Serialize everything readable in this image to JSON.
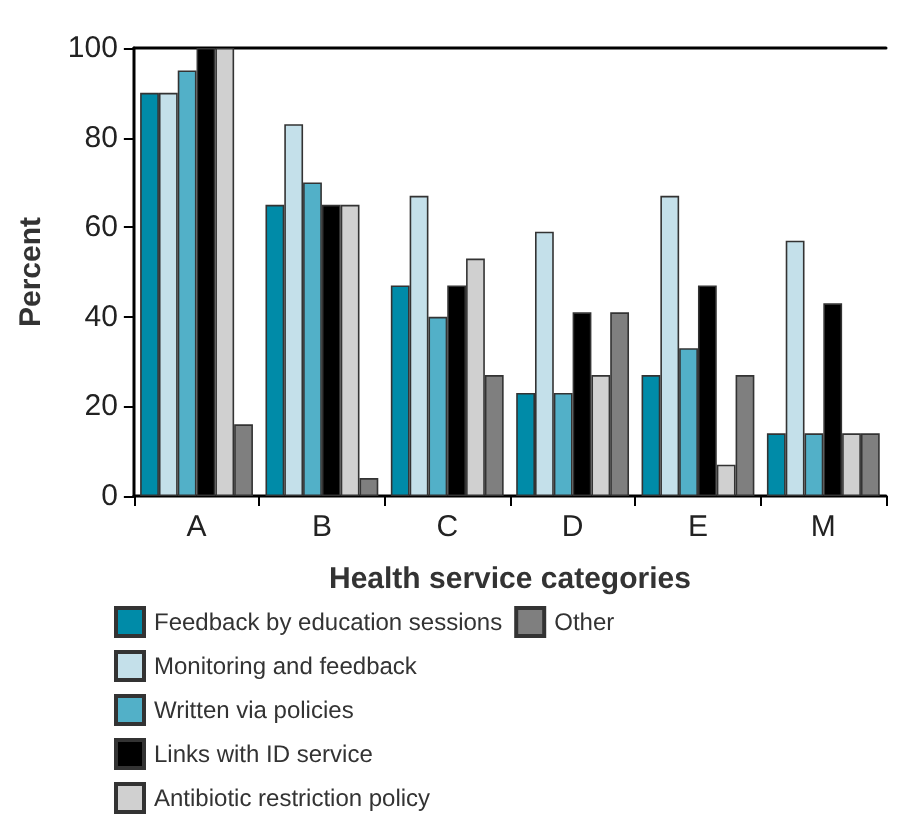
{
  "chart_data": {
    "type": "bar",
    "xlabel": "Health service categories",
    "ylabel": "Percent",
    "categories": [
      "A",
      "B",
      "C",
      "D",
      "E",
      "M"
    ],
    "series": [
      {
        "name": "Feedback by education sessions",
        "color": "#008ba8",
        "values": [
          90,
          65,
          47,
          23,
          27,
          14
        ]
      },
      {
        "name": "Monitoring and feedback",
        "color": "#c4e0ea",
        "values": [
          90,
          83,
          67,
          59,
          67,
          57
        ]
      },
      {
        "name": "Written via policies",
        "color": "#52b0c8",
        "values": [
          95,
          70,
          40,
          23,
          33,
          14
        ]
      },
      {
        "name": "Links with ID service",
        "color": "#000000",
        "values": [
          100,
          65,
          47,
          41,
          47,
          43
        ]
      },
      {
        "name": "Antibiotic restriction policy",
        "color": "#d0d0d0",
        "values": [
          100,
          65,
          53,
          27,
          7,
          14
        ]
      },
      {
        "name": "Other",
        "color": "#7f7f7f",
        "values": [
          16,
          4,
          27,
          41,
          27,
          14
        ]
      }
    ],
    "ylim": [
      0,
      100
    ],
    "yticks": [
      0,
      20,
      40,
      60,
      80,
      100
    ],
    "grid": false,
    "legend": "bottom"
  }
}
